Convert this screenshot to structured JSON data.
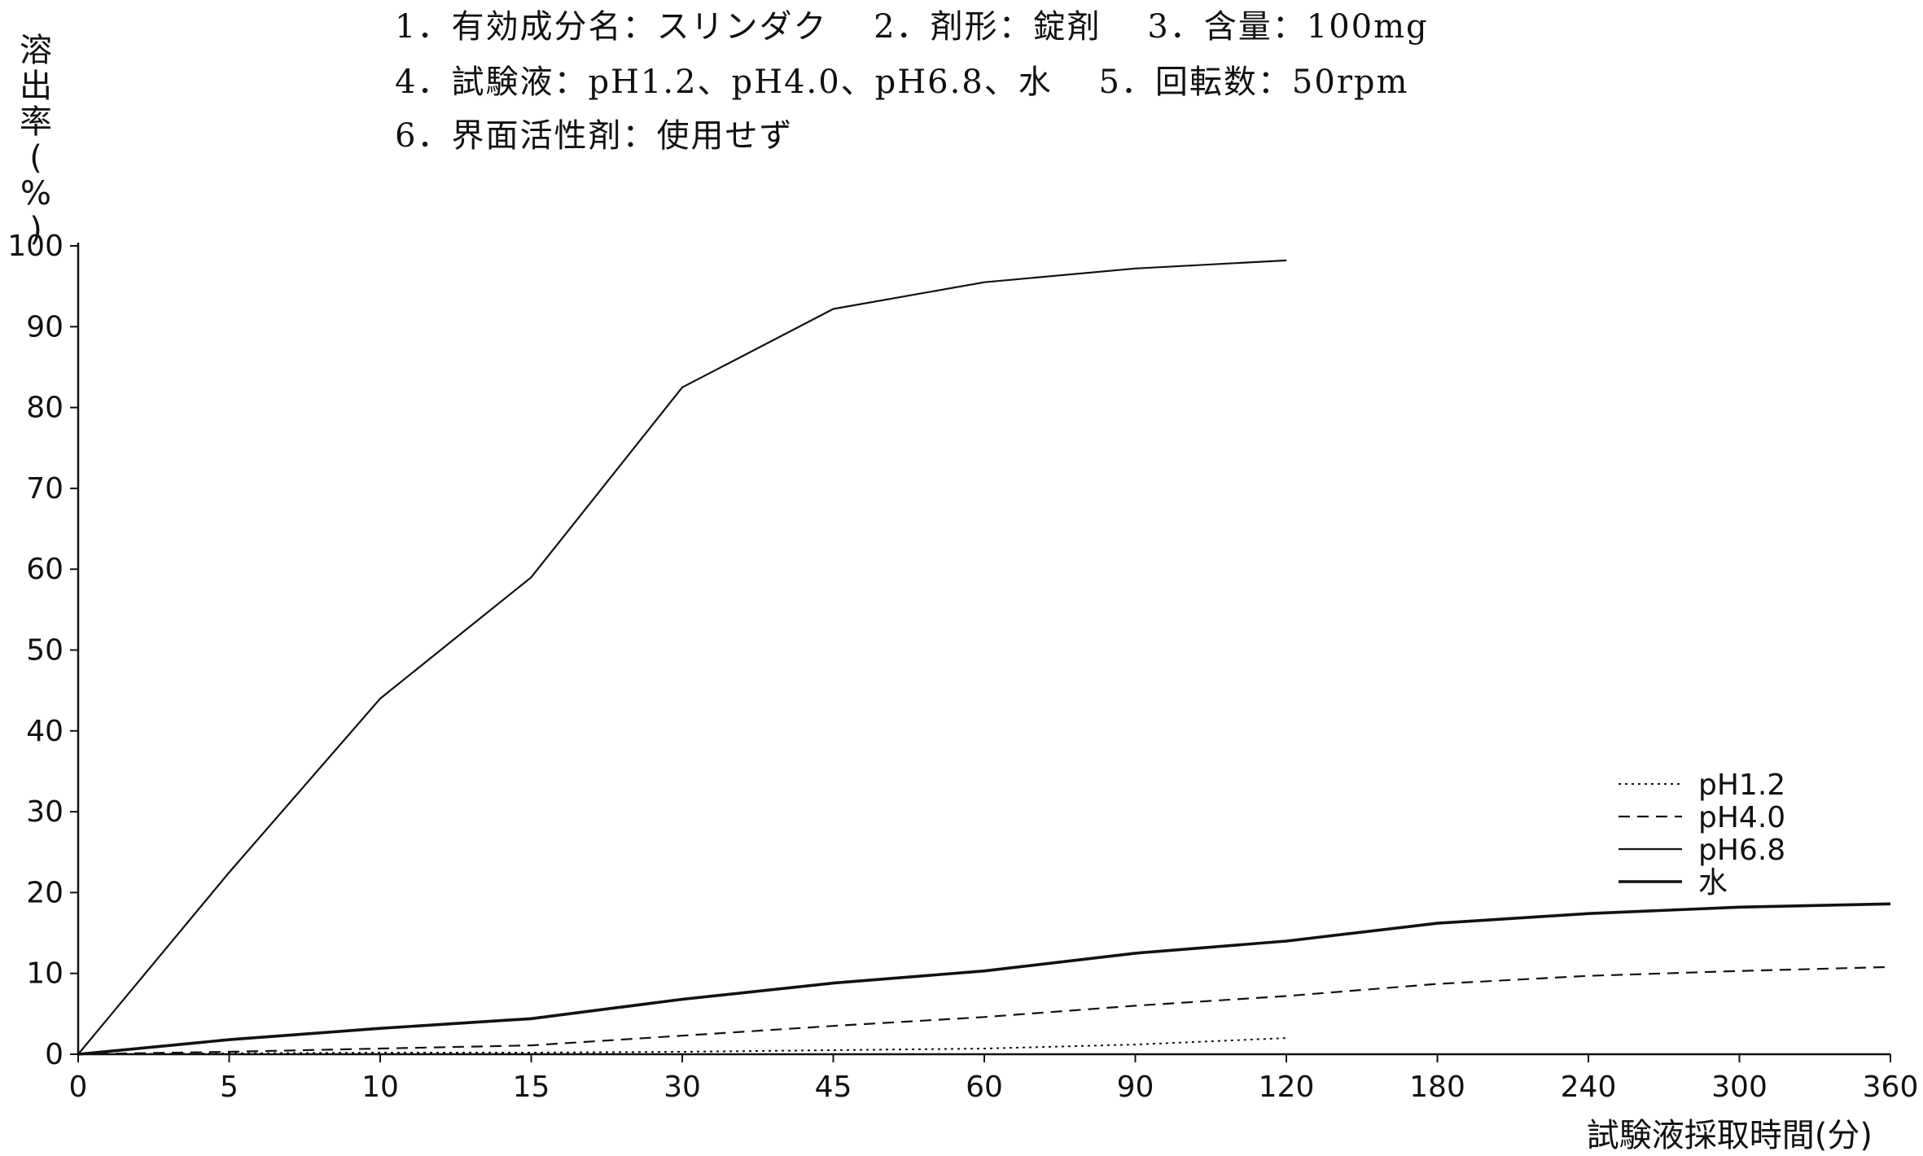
{
  "conditions": [
    "1．有効成分名：スリンダク　 2．剤形：錠剤　 3．含量：100mg",
    "4．試験液：pH1.2、pH4.0、pH6.8、水　 5．回転数：50rpm",
    "6．界面活性剤：使用せず"
  ],
  "chart_data": {
    "type": "line",
    "xlabel": "試験液採取時間(分)",
    "ylabel": "溶出率(%)",
    "ylim": [
      0,
      100
    ],
    "yticks": [
      0,
      10,
      20,
      30,
      40,
      50,
      60,
      70,
      80,
      90,
      100
    ],
    "categories": [
      "0",
      "5",
      "10",
      "15",
      "30",
      "45",
      "60",
      "90",
      "120",
      "180",
      "240",
      "300",
      "360"
    ],
    "grid": false,
    "legend_position": "right",
    "series": [
      {
        "name": "pH1.2",
        "style": "dotted",
        "values": [
          0,
          0.1,
          0.2,
          0.2,
          0.3,
          0.5,
          0.7,
          1.2,
          2.0,
          null,
          null,
          null,
          null
        ]
      },
      {
        "name": "pH4.0",
        "style": "dashed",
        "values": [
          0,
          0.3,
          0.7,
          1.1,
          2.3,
          3.5,
          4.6,
          6.0,
          7.2,
          8.7,
          9.7,
          10.3,
          10.8
        ]
      },
      {
        "name": "pH6.8",
        "style": "solid",
        "values": [
          0,
          22.5,
          44.0,
          59.0,
          82.5,
          92.2,
          95.5,
          97.2,
          98.2,
          null,
          null,
          null,
          null
        ]
      },
      {
        "name": "水",
        "style": "thick",
        "values": [
          0,
          1.8,
          3.2,
          4.4,
          6.8,
          8.8,
          10.3,
          12.5,
          14.0,
          16.2,
          17.4,
          18.2,
          18.6
        ]
      }
    ]
  }
}
